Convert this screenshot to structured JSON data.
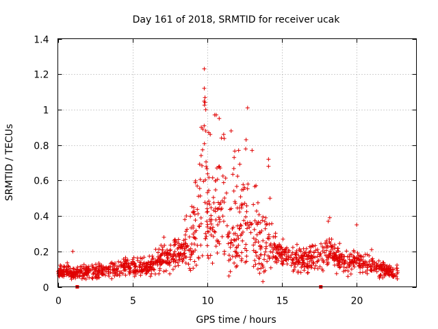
{
  "chart_data": {
    "type": "scatter",
    "title": "Day 161 of 2018, SRMTID for receiver ucak",
    "xlabel": "GPS time / hours",
    "ylabel": "SRMTID / TECUs",
    "xlim": [
      0,
      24
    ],
    "ylim": [
      0,
      1.4
    ],
    "xticks": [
      0,
      5,
      10,
      15,
      20
    ],
    "yticks": [
      0,
      0.2,
      0.4,
      0.6,
      0.8,
      1,
      1.2,
      1.4
    ],
    "ytick_labels": [
      "0",
      "0.2",
      "0.4",
      "0.6",
      "0.8",
      "1",
      "1.2",
      "1.4"
    ],
    "grid": true,
    "marker": "plus",
    "color": "#e00000",
    "baseline_markers_x": [
      1.3,
      17.6
    ],
    "series": [
      {
        "name": "SRMTID",
        "profile": [
          [
            0.0,
            0.08
          ],
          [
            0.5,
            0.09
          ],
          [
            1.0,
            0.08
          ],
          [
            1.5,
            0.08
          ],
          [
            2.0,
            0.09
          ],
          [
            2.5,
            0.09
          ],
          [
            3.0,
            0.09
          ],
          [
            3.5,
            0.09
          ],
          [
            4.0,
            0.1
          ],
          [
            4.5,
            0.11
          ],
          [
            5.0,
            0.11
          ],
          [
            5.5,
            0.11
          ],
          [
            6.0,
            0.11
          ],
          [
            6.5,
            0.13
          ],
          [
            7.0,
            0.16
          ],
          [
            7.5,
            0.17
          ],
          [
            8.0,
            0.18
          ],
          [
            8.5,
            0.22
          ],
          [
            9.0,
            0.3
          ],
          [
            9.5,
            0.48
          ],
          [
            9.8,
            0.65
          ],
          [
            10.0,
            0.55
          ],
          [
            10.3,
            0.35
          ],
          [
            10.7,
            0.55
          ],
          [
            11.0,
            0.5
          ],
          [
            11.5,
            0.42
          ],
          [
            12.0,
            0.38
          ],
          [
            12.5,
            0.45
          ],
          [
            13.0,
            0.4
          ],
          [
            13.5,
            0.28
          ],
          [
            14.0,
            0.25
          ],
          [
            14.5,
            0.22
          ],
          [
            15.0,
            0.18
          ],
          [
            15.5,
            0.16
          ],
          [
            16.0,
            0.15
          ],
          [
            16.5,
            0.15
          ],
          [
            17.0,
            0.16
          ],
          [
            17.5,
            0.18
          ],
          [
            18.0,
            0.22
          ],
          [
            18.5,
            0.18
          ],
          [
            19.0,
            0.15
          ],
          [
            19.5,
            0.14
          ],
          [
            20.0,
            0.15
          ],
          [
            20.5,
            0.13
          ],
          [
            21.0,
            0.12
          ],
          [
            21.5,
            0.1
          ],
          [
            22.0,
            0.09
          ],
          [
            22.5,
            0.08
          ],
          [
            22.8,
            0.08
          ]
        ],
        "extremes": [
          [
            9.8,
            1.23
          ],
          [
            9.8,
            1.12
          ],
          [
            9.85,
            1.04
          ],
          [
            9.9,
            1.0
          ],
          [
            9.6,
            0.9
          ],
          [
            9.7,
            0.89
          ],
          [
            9.9,
            0.88
          ],
          [
            10.1,
            0.87
          ],
          [
            10.2,
            0.86
          ],
          [
            10.5,
            0.97
          ],
          [
            10.6,
            0.97
          ],
          [
            10.8,
            0.95
          ],
          [
            11.1,
            0.86
          ],
          [
            11.6,
            0.88
          ],
          [
            12.7,
            1.01
          ],
          [
            12.6,
            0.83
          ],
          [
            13.0,
            0.77
          ],
          [
            12.1,
            0.77
          ],
          [
            11.8,
            0.73
          ],
          [
            14.1,
            0.72
          ],
          [
            14.1,
            0.68
          ],
          [
            14.2,
            0.5
          ],
          [
            18.2,
            0.39
          ],
          [
            18.1,
            0.37
          ],
          [
            20.0,
            0.35
          ],
          [
            8.6,
            0.4
          ],
          [
            8.5,
            0.38
          ],
          [
            7.1,
            0.28
          ],
          [
            1.0,
            0.2
          ],
          [
            21.0,
            0.21
          ]
        ]
      }
    ]
  }
}
